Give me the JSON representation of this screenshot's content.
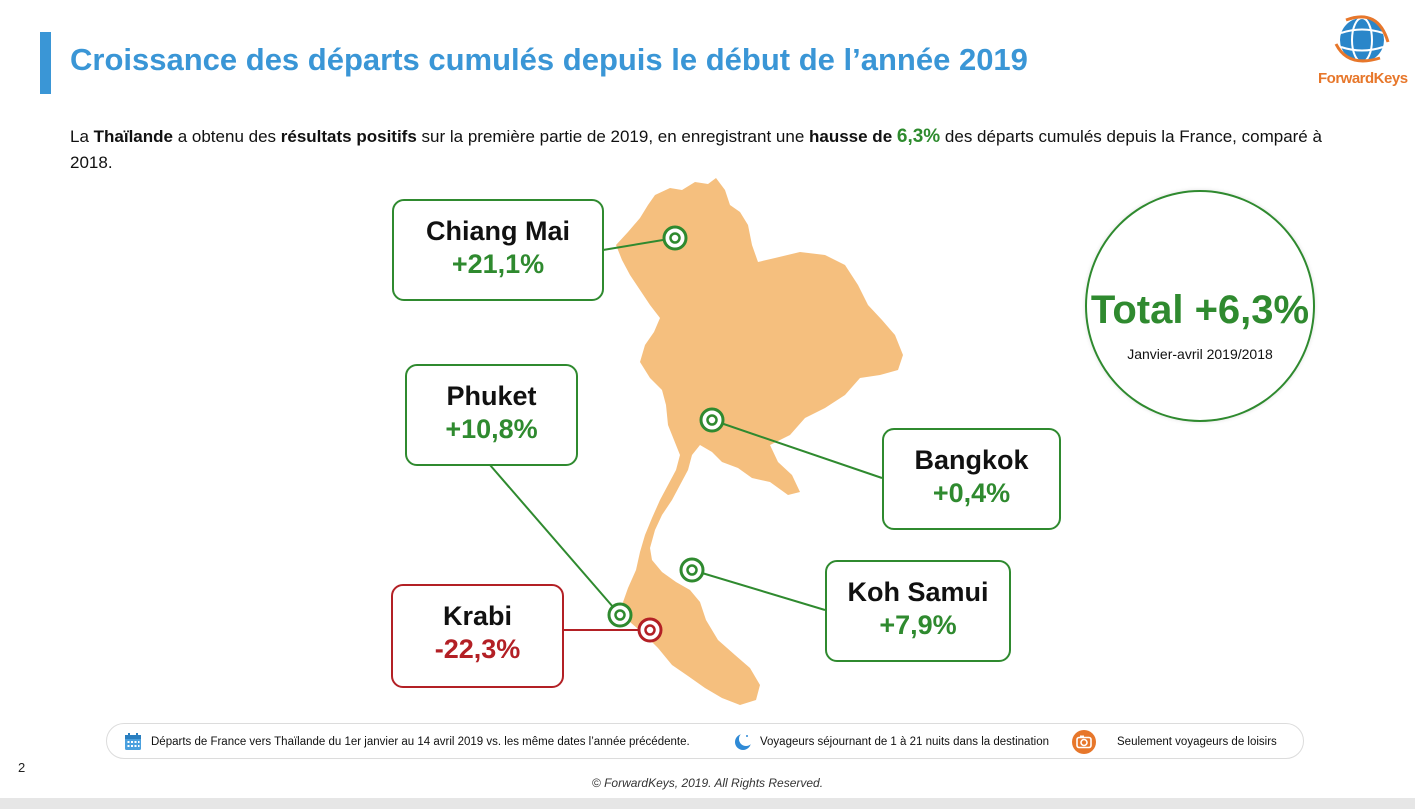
{
  "header": {
    "title": "Croissance des départs cumulés depuis le début de l’année 2019",
    "logo_text": "ForwardKeys"
  },
  "intro": {
    "p1": "La ",
    "b1": "Thaïlande",
    "p2": " a obtenu des ",
    "b2": "résultats positifs",
    "p3": " sur la première partie de 2019, en enregistrant une ",
    "b3": "hausse de ",
    "accent": "6,3%",
    "p4": " des départs cumulés depuis la France, comparé à 2018."
  },
  "destinations": [
    {
      "name": "Chiang Mai",
      "value": "+21,1%",
      "trend": "positive"
    },
    {
      "name": "Phuket",
      "value": "+10,8%",
      "trend": "positive"
    },
    {
      "name": "Bangkok",
      "value": "+0,4%",
      "trend": "positive"
    },
    {
      "name": "Koh Samui",
      "value": "+7,9%",
      "trend": "positive"
    },
    {
      "name": "Krabi",
      "value": "-22,3%",
      "trend": "negative"
    }
  ],
  "total": {
    "value": "Total +6,3%",
    "caption": "Janvier-avril 2019/2018"
  },
  "legend": {
    "period": "Départs de France vers Thaïlande du 1er janvier au 14 avril 2019 vs. les même dates l’année précédente.",
    "nights": "Voyageurs séjournant de 1 à 21 nuits dans la destination",
    "leisure": "Seulement voyageurs de loisirs"
  },
  "page_number": "2",
  "footer": "© ForwardKeys, 2019. All Rights Reserved.",
  "colors": {
    "title": "#3a96d6",
    "positive": "#2f8a2f",
    "negative": "#b32025",
    "map_fill": "#f5bf7e",
    "logo": "#e7772b"
  }
}
